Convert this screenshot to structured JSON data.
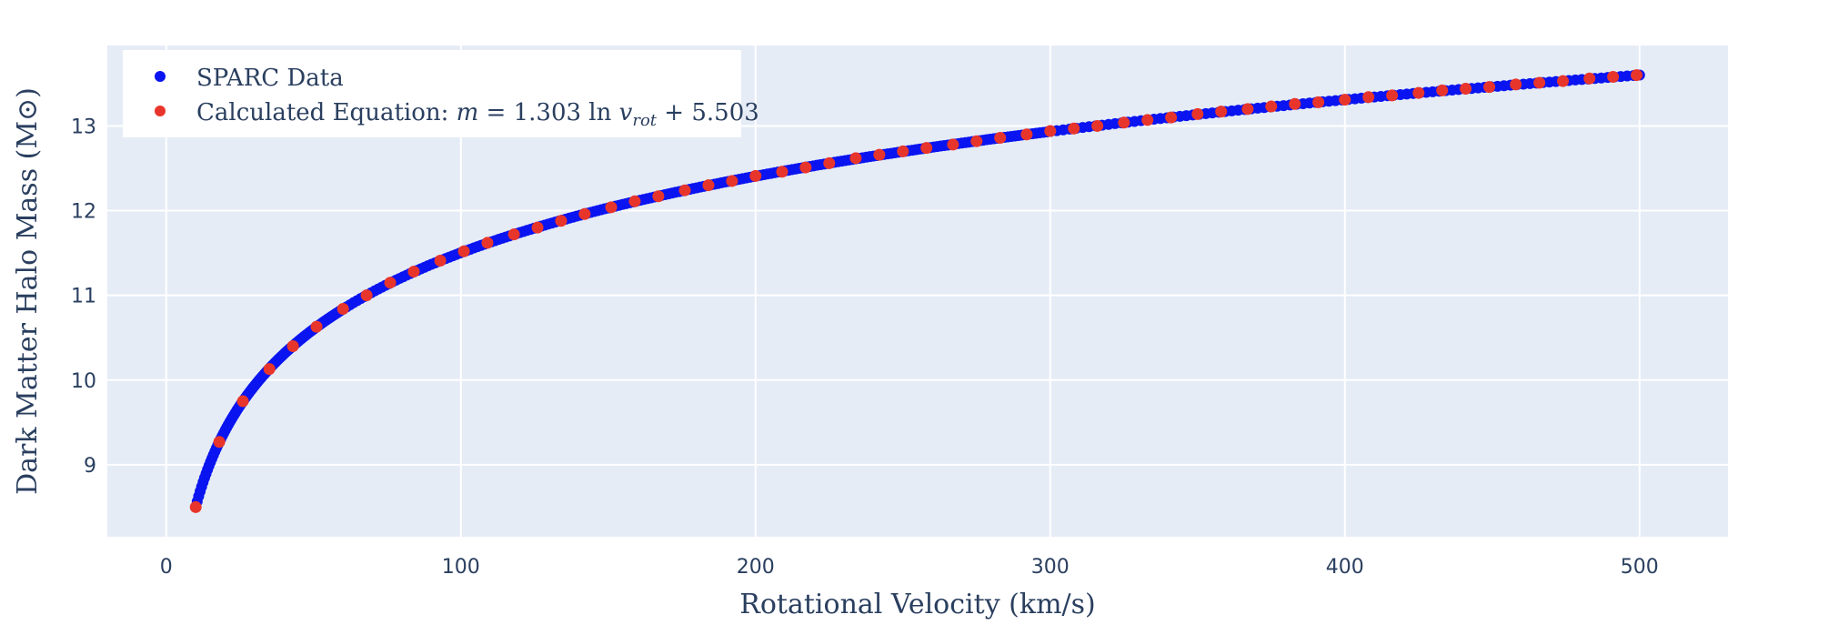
{
  "chart_data": {
    "type": "scatter",
    "xlabel": "Rotational Velocity (km/s)",
    "ylabel": "Dark Matter Halo Mass (M⊙)",
    "xlim": [
      -20,
      530
    ],
    "ylim": [
      8.15,
      13.95
    ],
    "x_ticks": [
      0,
      100,
      200,
      300,
      400,
      500
    ],
    "x_tick_labels": [
      "0",
      "100",
      "200",
      "300",
      "400",
      "500"
    ],
    "y_ticks": [
      9,
      10,
      11,
      12,
      13
    ],
    "y_tick_labels": [
      "9",
      "10",
      "11",
      "12",
      "13"
    ],
    "grid": true,
    "legend_position": "top-left",
    "legend": {
      "sparc": "SPARC Data",
      "calc_prefix": "Calculated Equation: ",
      "calc_m": "m",
      "calc_eq": " = 1.303 ln ",
      "calc_v": "v",
      "calc_sub": "rot",
      "calc_tail": " + 5.503"
    },
    "colors": {
      "plot_bg": "#e5ecf6",
      "grid": "#ffffff",
      "sparc": "#0a14f0",
      "calculated": "#e8352b",
      "text": "#2a3f5f"
    },
    "series": [
      {
        "name": "SPARC Data",
        "model": {
          "a": 1.303,
          "b": 5.503,
          "x_min": 10,
          "x_max": 500
        }
      },
      {
        "name": "Calculated Equation",
        "x": [
          10,
          18,
          26,
          35,
          43,
          51,
          60,
          68,
          76,
          84,
          93,
          101,
          109,
          118,
          126,
          134,
          142,
          151,
          159,
          167,
          176,
          184,
          192,
          200,
          209,
          217,
          225,
          234,
          242,
          250,
          258,
          267,
          275,
          283,
          292,
          300,
          308,
          316,
          325,
          333,
          341,
          350,
          358,
          367,
          375,
          383,
          391,
          400,
          408,
          416,
          425,
          433,
          441,
          449,
          458,
          466,
          474,
          483,
          491,
          499
        ],
        "y": [
          8.5,
          9.27,
          9.75,
          10.13,
          10.4,
          10.63,
          10.84,
          11.0,
          11.15,
          11.28,
          11.41,
          11.52,
          11.62,
          11.72,
          11.8,
          11.88,
          11.96,
          12.04,
          12.11,
          12.17,
          12.24,
          12.3,
          12.35,
          12.41,
          12.46,
          12.51,
          12.56,
          12.62,
          12.66,
          12.7,
          12.74,
          12.78,
          12.82,
          12.86,
          12.9,
          12.94,
          12.97,
          13.0,
          13.04,
          13.07,
          13.1,
          13.14,
          13.17,
          13.2,
          13.23,
          13.26,
          13.28,
          13.31,
          13.34,
          13.36,
          13.39,
          13.42,
          13.44,
          13.46,
          13.49,
          13.51,
          13.53,
          13.56,
          13.58,
          13.6
        ]
      }
    ]
  }
}
